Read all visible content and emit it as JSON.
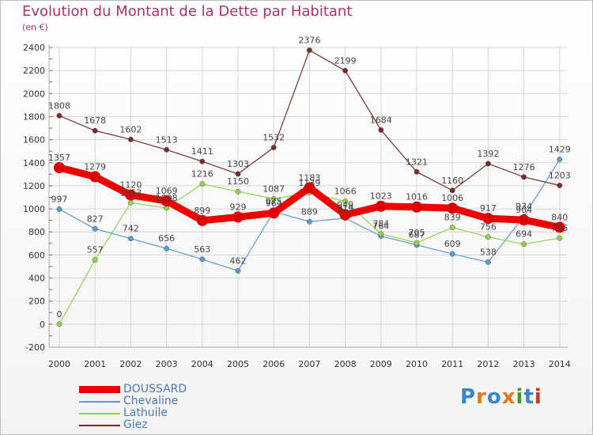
{
  "title": "Evolution du Montant de la Dette par Habitant",
  "subtitle": "(en €)",
  "brand": "Proxiti",
  "brand_colors": [
    "#3a86c8",
    "#e07a1f",
    "#3a86c8",
    "#e07a1f",
    "#3a9a2a",
    "#3a86c8",
    "#c0392b"
  ],
  "chart_data": {
    "type": "line",
    "title": "Evolution du Montant de la Dette par Habitant",
    "ylabel": "(en €)",
    "xlabel": "",
    "x": [
      "2000",
      "2001",
      "2002",
      "2003",
      "2004",
      "2005",
      "2006",
      "2007",
      "2008",
      "2009",
      "2010",
      "2011",
      "2012",
      "2013",
      "2014"
    ],
    "ylim": [
      -200,
      2400
    ],
    "yticks": [
      "-200",
      "0",
      "200",
      "400",
      "600",
      "800",
      "1000",
      "1200",
      "1400",
      "1600",
      "1800",
      "2000",
      "2200",
      "2400"
    ],
    "grid": true,
    "legend_position": "bottom-left",
    "series": [
      {
        "name": "DOUSSARD",
        "color": "#ee0000",
        "width": 9,
        "values": [
          1357,
          1279,
          1120,
          1069,
          899,
          929,
          964,
          1183,
          949,
          1023,
          1016,
          1006,
          917,
          904,
          840
        ],
        "labels": [
          "1357",
          "1279",
          "1120",
          "1069",
          "899",
          "929",
          "964",
          "1183",
          "949",
          "1023",
          "1016",
          "1006",
          "917",
          "904",
          "840"
        ]
      },
      {
        "name": "Chevaline",
        "color": "#5a9bd5",
        "width": 1.2,
        "values": [
          997,
          827,
          742,
          656,
          563,
          462,
          975,
          889,
          919,
          764,
          687,
          609,
          538,
          934,
          1429
        ],
        "labels": [
          "997",
          "827",
          "742",
          "656",
          "563",
          "462",
          "975",
          "889",
          "919",
          "764",
          "687",
          "609",
          "538",
          "934",
          "1429"
        ]
      },
      {
        "name": "Lathuile",
        "color": "#8fd44a",
        "width": 1.2,
        "values": [
          0,
          557,
          1053,
          1008,
          1216,
          1150,
          1087,
          1139,
          1066,
          784,
          705,
          839,
          756,
          694,
          746
        ],
        "labels": [
          "0",
          "557",
          "1053",
          "1008",
          "1216",
          "1150",
          "1087",
          "1139",
          "1066",
          "784",
          "705",
          "839",
          "756",
          "694",
          "746"
        ]
      },
      {
        "name": "Giez",
        "color": "#7a2a2a",
        "width": 1.2,
        "values": [
          1808,
          1678,
          1602,
          1513,
          1411,
          1303,
          1532,
          2376,
          2199,
          1684,
          1321,
          1160,
          1392,
          1276,
          1203
        ],
        "labels": [
          "1808",
          "1678",
          "1602",
          "1513",
          "1411",
          "1303",
          "1532",
          "2376",
          "2199",
          "1684",
          "1321",
          "1160",
          "1392",
          "1276",
          "1203"
        ]
      }
    ]
  }
}
